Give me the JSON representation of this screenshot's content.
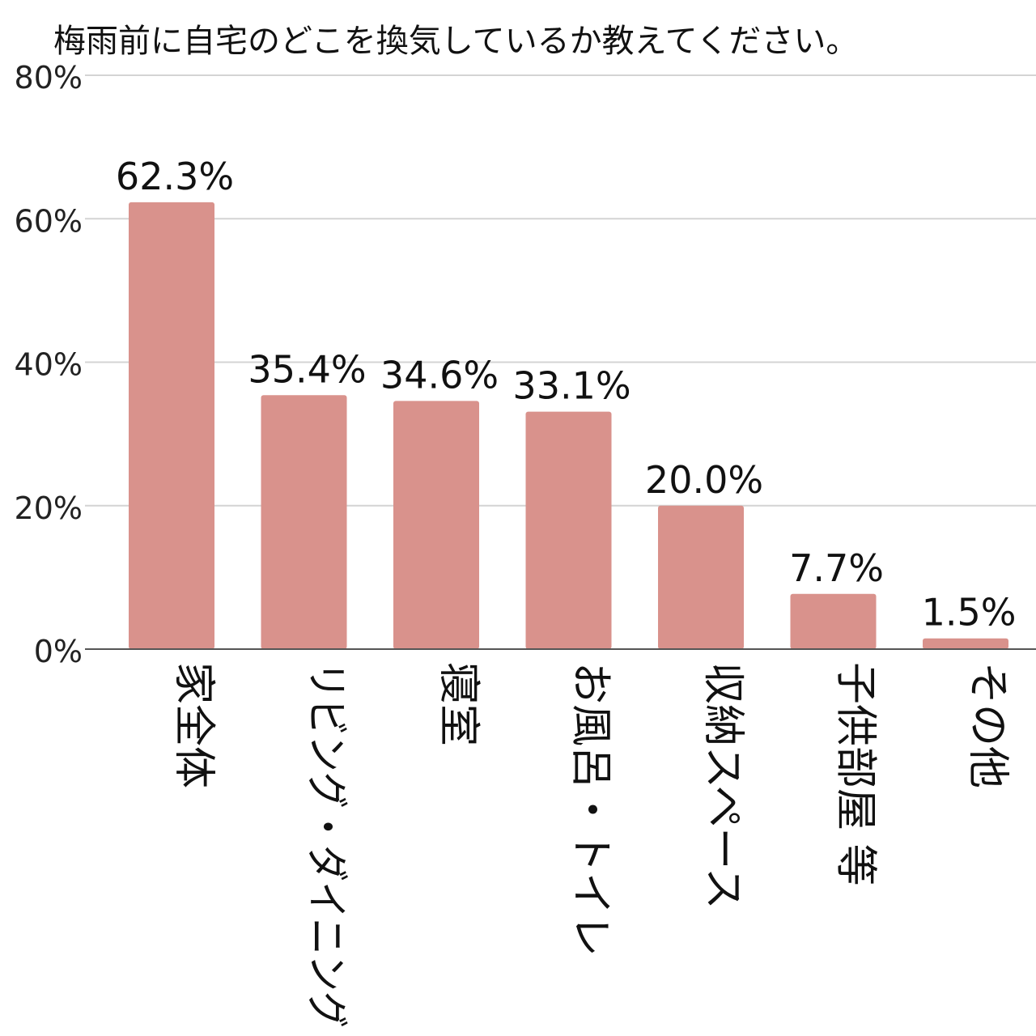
{
  "chart_data": {
    "type": "bar",
    "title": "梅雨前に自宅のどこを換気しているか教えてください。",
    "xlabel": "",
    "ylabel": "",
    "categories": [
      "家全体",
      "リビング・ダイニング",
      "寝室",
      "お風呂・トイレ",
      "収納スペース",
      "子供部屋 等",
      "その他"
    ],
    "values": [
      62.3,
      35.4,
      34.6,
      33.1,
      20.0,
      7.7,
      1.5
    ],
    "value_labels": [
      "62.3%",
      "35.4%",
      "34.6%",
      "33.1%",
      "20.0%",
      "7.7%",
      "1.5%"
    ],
    "ylim": [
      0,
      80
    ],
    "yticks": [
      0,
      20,
      40,
      60,
      80
    ],
    "ytick_labels": [
      "0%",
      "20%",
      "40%",
      "60%",
      "80%"
    ],
    "grid": true,
    "legend": "none",
    "bar_color": "#d9928c",
    "grid_color": "#d4d4d4",
    "axis_color": "#555555"
  }
}
